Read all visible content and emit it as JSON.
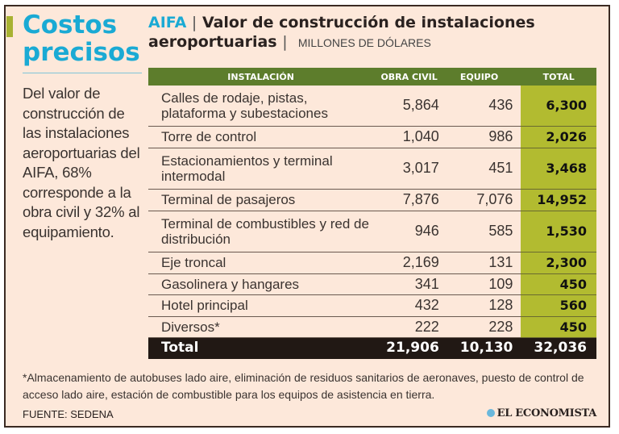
{
  "colors": {
    "accent": "#1aaad4",
    "header_green": "#5d7d2c",
    "total_column": "#b2bb30",
    "total_row": "#211814",
    "background": "#fde8da"
  },
  "sidebar": {
    "headline_line1": "Costos",
    "headline_line2": "precisos",
    "lede": "Del valor de construcción de las instalaciones aeroportuarias del AIFA, 68% corresponde a la obra civil y 32% al equipamiento."
  },
  "header": {
    "brand": "AIFA",
    "title_line1": "Valor de construcción de instalaciones",
    "title_line2": "aeroportuarias",
    "unit": "MILLONES DE DÓLARES"
  },
  "table": {
    "columns": [
      "INSTALACIÓN",
      "OBRA CIVIL",
      "EQUIPO",
      "TOTAL"
    ],
    "rows": [
      {
        "name": "Calles de rodaje, pistas, plataforma y subestaciones",
        "obra": "5,864",
        "equipo": "436",
        "total": "6,300"
      },
      {
        "name": "Torre de control",
        "obra": "1,040",
        "equipo": "986",
        "total": "2,026"
      },
      {
        "name": "Estacionamientos y terminal intermodal",
        "obra": "3,017",
        "equipo": "451",
        "total": "3,468"
      },
      {
        "name": "Terminal de pasajeros",
        "obra": "7,876",
        "equipo": "7,076",
        "total": "14,952"
      },
      {
        "name": "Terminal de combustibles y red de distribución",
        "obra": "946",
        "equipo": "585",
        "total": "1,530"
      },
      {
        "name": "Eje troncal",
        "obra": "2,169",
        "equipo": "131",
        "total": "2,300"
      },
      {
        "name": "Gasolinera y hangares",
        "obra": "341",
        "equipo": "109",
        "total": "450"
      },
      {
        "name": "Hotel principal",
        "obra": "432",
        "equipo": "128",
        "total": "560"
      },
      {
        "name": "Diversos*",
        "obra": "222",
        "equipo": "228",
        "total": "450"
      }
    ],
    "total": {
      "name": "Total",
      "obra": "21,906",
      "equipo": "10,130",
      "total": "32,036"
    }
  },
  "footnote": "*Almacenamiento de autobuses lado aire, eliminación de residuos sanitarios de aeronaves, puesto de control de acceso lado aire, estación de combustible para los equipos de asistencia en tierra.",
  "source": "FUENTE: SEDENA",
  "logo": "EL ECONOMISTA"
}
